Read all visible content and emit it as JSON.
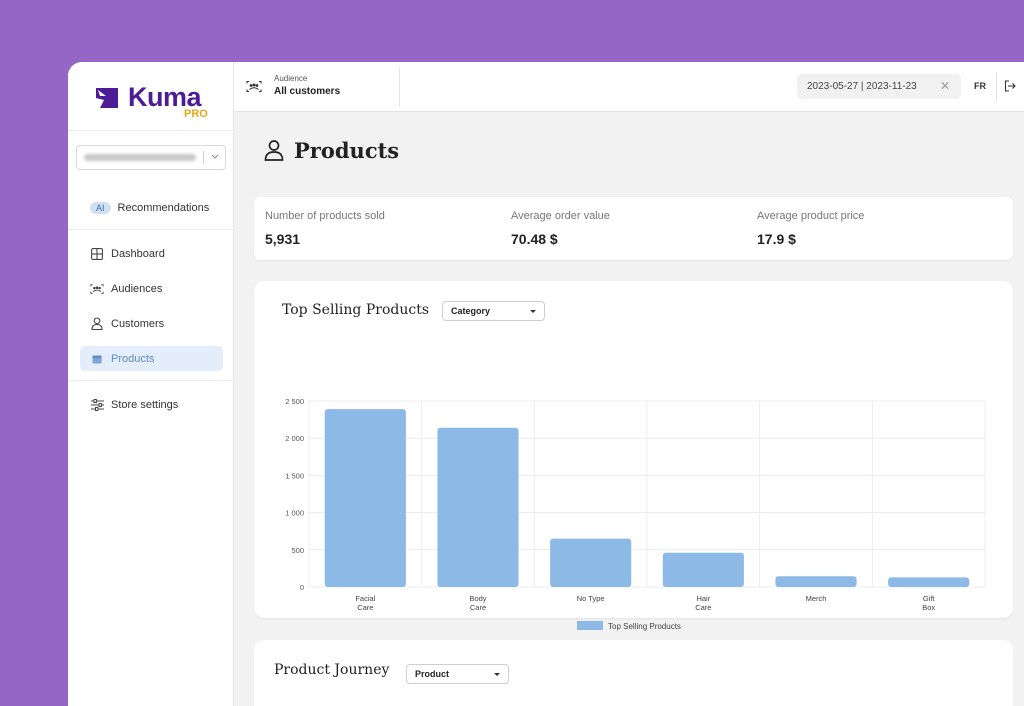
{
  "brand": {
    "name": "Kuma",
    "tier": "PRO",
    "color": "#4b1c96",
    "tier_color": "#e7a817"
  },
  "sidebar": {
    "ai_badge": "AI",
    "items": [
      {
        "label": "Recommendations",
        "icon": "ai-badge"
      },
      {
        "label": "Dashboard",
        "icon": "grid-icon"
      },
      {
        "label": "Audiences",
        "icon": "audience-icon"
      },
      {
        "label": "Customers",
        "icon": "user-icon"
      },
      {
        "label": "Products",
        "icon": "box-icon",
        "active": true
      },
      {
        "label": "Store settings",
        "icon": "sliders-icon"
      }
    ]
  },
  "topbar": {
    "audience_label": "Audience",
    "audience_value": "All customers",
    "date_range": "2023-05-27 | 2023-11-23",
    "language": "FR"
  },
  "page": {
    "title": "Products"
  },
  "kpis": [
    {
      "label": "Number of products sold",
      "value": "5,931"
    },
    {
      "label": "Average order value",
      "value": "70.48 $"
    },
    {
      "label": "Average product price",
      "value": "17.9 $"
    }
  ],
  "top_selling": {
    "title": "Top Selling Products",
    "dropdown": "Category"
  },
  "chart_data": {
    "type": "bar",
    "categories": [
      [
        "Facial",
        "Care"
      ],
      [
        "Body",
        "Care"
      ],
      [
        "No Type"
      ],
      [
        "Hair",
        "Care"
      ],
      [
        "Merch"
      ],
      [
        "Gift",
        "Box"
      ]
    ],
    "series": [
      {
        "name": "Top Selling Products",
        "values": [
          2390,
          2140,
          650,
          460,
          145,
          130
        ],
        "color": "#8cb9e6"
      }
    ],
    "yticks": [
      "2 500",
      "2 000",
      "1 500",
      "1 000",
      "500",
      "0"
    ],
    "ylim": [
      0,
      2500
    ],
    "grid": true,
    "legend": "bottom"
  },
  "journey": {
    "title": "Product Journey",
    "dropdown": "Product"
  }
}
